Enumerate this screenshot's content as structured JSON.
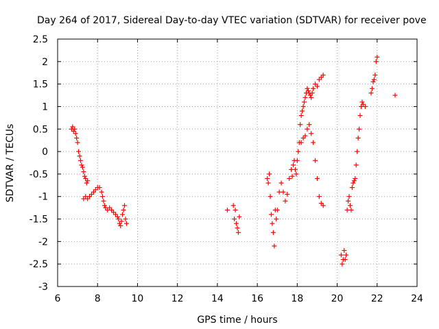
{
  "chart_data": {
    "type": "scatter",
    "title": "Day 264 of 2017, Sidereal Day-to-day VTEC variation (SDTVAR) for receiver pove",
    "xlabel": "GPS time / hours",
    "ylabel": "SDTVAR / TECUs",
    "xlim": [
      6,
      24
    ],
    "ylim": [
      -3,
      2.5
    ],
    "xticks": [
      "6",
      "8",
      "10",
      "12",
      "14",
      "16",
      "18",
      "20",
      "22",
      "24"
    ],
    "yticks": [
      "2.5",
      "2",
      "1.5",
      "1",
      "0.5",
      "0",
      "-0.5",
      "-1",
      "-1.5",
      "-2",
      "-2.5",
      "-3"
    ],
    "grid": true,
    "marker": "+",
    "color": "#ff0000",
    "series": [
      {
        "name": "SDTVAR",
        "x": [
          6.7,
          6.75,
          6.8,
          6.85,
          6.9,
          6.95,
          7.0,
          7.05,
          7.1,
          7.15,
          7.2,
          7.25,
          7.3,
          7.35,
          7.4,
          7.45,
          7.5,
          7.3,
          7.4,
          7.5,
          7.6,
          7.7,
          7.8,
          7.9,
          8.0,
          8.1,
          8.2,
          8.25,
          8.3,
          8.35,
          8.4,
          8.5,
          8.6,
          8.7,
          8.8,
          8.9,
          9.0,
          9.05,
          9.1,
          9.15,
          9.2,
          9.25,
          9.3,
          9.35,
          9.4,
          9.45,
          14.5,
          14.8,
          14.85,
          14.9,
          14.95,
          15.0,
          15.05,
          15.1,
          16.5,
          16.55,
          16.6,
          16.65,
          16.7,
          16.75,
          16.8,
          16.85,
          16.9,
          16.95,
          17.0,
          17.1,
          17.2,
          17.3,
          17.4,
          17.5,
          17.6,
          17.7,
          17.75,
          17.8,
          17.85,
          17.9,
          17.95,
          18.0,
          18.05,
          18.1,
          18.15,
          18.2,
          18.25,
          18.3,
          18.35,
          18.4,
          18.45,
          18.5,
          18.55,
          18.6,
          18.65,
          18.7,
          18.75,
          18.8,
          18.9,
          19.0,
          19.1,
          19.2,
          19.3,
          18.2,
          18.3,
          18.4,
          18.5,
          18.6,
          18.7,
          18.8,
          18.9,
          19.0,
          19.1,
          19.2,
          19.3,
          20.2,
          20.25,
          20.3,
          20.35,
          20.4,
          20.45,
          20.5,
          20.55,
          20.6,
          20.65,
          20.7,
          20.75,
          20.8,
          20.85,
          20.9,
          20.95,
          21.0,
          21.05,
          21.1,
          21.15,
          21.2,
          21.25,
          21.3,
          21.4,
          21.7,
          21.75,
          21.8,
          21.85,
          21.9,
          21.95,
          22.0,
          22.9
        ],
        "y": [
          0.5,
          0.55,
          0.45,
          0.5,
          0.4,
          0.3,
          0.2,
          0.0,
          -0.1,
          -0.2,
          -0.3,
          -0.35,
          -0.45,
          -0.55,
          -0.6,
          -0.7,
          -0.65,
          -1.05,
          -1.0,
          -1.05,
          -1.0,
          -0.95,
          -0.9,
          -0.85,
          -0.8,
          -0.8,
          -0.9,
          -1.0,
          -1.1,
          -1.2,
          -1.25,
          -1.3,
          -1.25,
          -1.3,
          -1.35,
          -1.4,
          -1.45,
          -1.5,
          -1.6,
          -1.65,
          -1.55,
          -1.4,
          -1.3,
          -1.2,
          -1.5,
          -1.6,
          -1.3,
          -1.2,
          -1.5,
          -1.3,
          -1.6,
          -1.7,
          -1.8,
          -1.45,
          -0.6,
          -0.7,
          -0.5,
          -1.0,
          -1.4,
          -1.6,
          -1.8,
          -2.1,
          -1.3,
          -1.5,
          -1.3,
          -0.9,
          -0.7,
          -0.9,
          -1.1,
          -0.95,
          -0.6,
          -0.4,
          -0.55,
          -0.3,
          -0.2,
          -0.4,
          -0.5,
          -0.2,
          0.0,
          0.2,
          0.6,
          0.8,
          0.9,
          1.0,
          1.1,
          1.2,
          1.3,
          1.4,
          1.35,
          1.3,
          1.25,
          1.2,
          1.3,
          1.4,
          1.5,
          1.45,
          1.6,
          1.65,
          1.7,
          0.2,
          0.3,
          0.35,
          0.5,
          0.6,
          0.4,
          0.2,
          -0.2,
          -0.6,
          -1.0,
          -1.15,
          -1.2,
          -2.3,
          -2.5,
          -2.4,
          -2.2,
          -2.4,
          -2.3,
          -1.3,
          -1.1,
          -1.0,
          -1.2,
          -1.3,
          -0.8,
          -0.7,
          -0.65,
          -0.6,
          -0.3,
          0.0,
          0.3,
          0.5,
          0.8,
          1.0,
          1.1,
          1.05,
          1.0,
          1.3,
          1.4,
          1.55,
          1.6,
          1.7,
          2.0,
          2.1,
          1.25
        ]
      }
    ]
  }
}
